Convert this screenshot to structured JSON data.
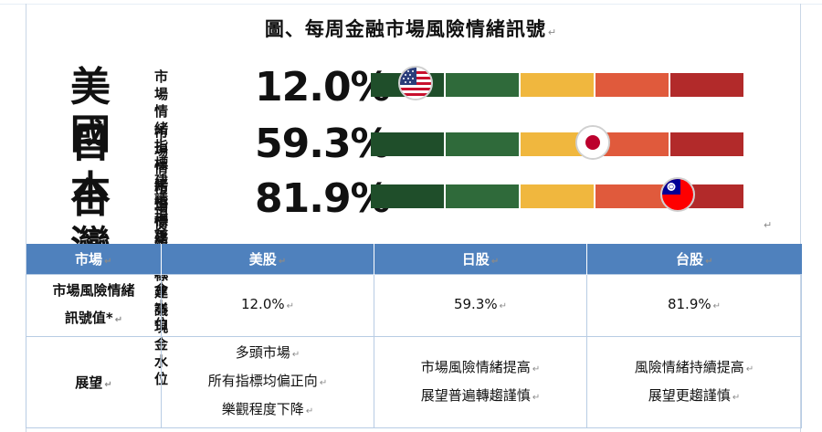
{
  "title": "圖、每周金融市場風險情緒訊號",
  "indicator_label_1": "市場情緒指標",
  "indicator_label_2": "建議現金水位",
  "gauge_colors": [
    "#1f4e2a",
    "#2f6a3a",
    "#f0b73e",
    "#e05a3c",
    "#b22a2a"
  ],
  "rows": [
    {
      "country": "美國",
      "pct": "12.0%",
      "flag_icon": "us-flag-icon",
      "level": 0.12
    },
    {
      "country": "日本",
      "pct": "59.3%",
      "flag_icon": "japan-flag-icon",
      "level": 0.593
    },
    {
      "country": "台灣",
      "pct": "81.9%",
      "flag_icon": "taiwan-flag-icon",
      "level": 0.819
    }
  ],
  "table": {
    "headers": [
      "市場",
      "美股",
      "日股",
      "台股"
    ],
    "risk_label_line1": "市場風險情緒",
    "risk_label_line2": "訊號值*",
    "risk_values": [
      "12.0%",
      "59.3%",
      "81.9%"
    ],
    "outlook_label": "展望",
    "outlook_us": [
      "多頭市場",
      "所有指標均偏正向",
      "樂觀程度下降"
    ],
    "outlook_jp": [
      "市場風險情緒提高",
      "展望普遍轉趨謹慎"
    ],
    "outlook_tw": [
      "風險情緒持續提高",
      "展望更趨謹慎"
    ]
  }
}
